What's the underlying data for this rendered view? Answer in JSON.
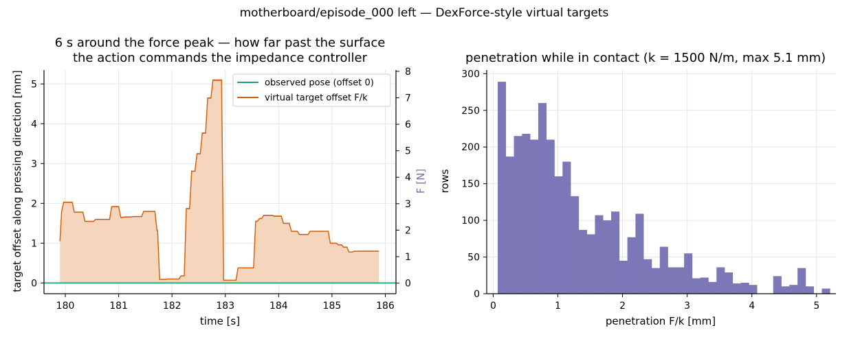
{
  "figure": {
    "suptitle": "motherboard/episode_000 left — DexForce-style virtual targets"
  },
  "colors": {
    "observed": "#1b9e77",
    "target": "#d95f02",
    "fill": "#f5d5bc",
    "force": "#7570b3",
    "grid": "#e6e6e6"
  },
  "chart_data": [
    {
      "type": "line",
      "title": "6 s around the force peak — how far past the surface\nthe action commands the impedance controller",
      "xlabel": "time [s]",
      "ylabel": "target offset along pressing direction [mm]",
      "y2label": "F [N]",
      "xlim": [
        179.6,
        186.2
      ],
      "ylim": [
        -0.27,
        5.35
      ],
      "y2lim": [
        -0.4,
        8.05
      ],
      "xticks": [
        180,
        181,
        182,
        183,
        184,
        185,
        186
      ],
      "yticks": [
        0,
        1,
        2,
        3,
        4,
        5
      ],
      "y2ticks": [
        0,
        1,
        2,
        3,
        4,
        5,
        6,
        7,
        8
      ],
      "grid": true,
      "legend_position": "top-right",
      "series": [
        {
          "name": "observed pose (offset 0)",
          "x": [
            179.6,
            186.2
          ],
          "y": [
            0,
            0
          ]
        },
        {
          "name": "virtual target offset F/k",
          "x": [
            179.9,
            179.93,
            180.03,
            180.13,
            180.33,
            180.43,
            180.53,
            180.73,
            180.83,
            181.0,
            181.07,
            181.23,
            181.43,
            181.63,
            181.68,
            181.73,
            181.88,
            182.13,
            182.23,
            182.33,
            182.43,
            182.53,
            182.63,
            182.73,
            182.83,
            182.93,
            183.2,
            183.53,
            183.6,
            183.68,
            183.88,
            184.05,
            184.2,
            184.35,
            184.55,
            184.75,
            184.93,
            185.08,
            185.18,
            185.28,
            185.38,
            185.58,
            185.88
          ],
          "y": [
            1.05,
            1.8,
            2.03,
            2.03,
            1.78,
            1.55,
            1.55,
            1.6,
            1.6,
            1.92,
            1.65,
            1.66,
            1.67,
            1.8,
            1.8,
            1.32,
            0.09,
            0.1,
            0.18,
            1.87,
            2.81,
            3.25,
            3.77,
            4.65,
            5.1,
            5.1,
            0.07,
            0.38,
            1.55,
            1.62,
            1.7,
            1.68,
            1.5,
            1.3,
            1.22,
            1.3,
            1.3,
            1.0,
            0.96,
            0.9,
            0.78,
            0.8,
            0.8
          ]
        }
      ]
    },
    {
      "type": "bar",
      "title": "penetration while in contact (k = 1500 N/m, max 5.1 mm)",
      "xlabel": "penetration F/k [mm]",
      "ylabel": "rows",
      "xlim": [
        -0.1,
        5.3
      ],
      "ylim": [
        0,
        305
      ],
      "xticks": [
        0,
        1,
        2,
        3,
        4,
        5
      ],
      "yticks": [
        0,
        50,
        100,
        150,
        200,
        250,
        300
      ],
      "grid": true,
      "bin_start": 0.07,
      "bin_width": 0.1253,
      "values": [
        289,
        187,
        215,
        218,
        210,
        260,
        210,
        160,
        180,
        133,
        87,
        81,
        107,
        100,
        112,
        45,
        77,
        109,
        47,
        35,
        64,
        36,
        36,
        55,
        21,
        22,
        16,
        36,
        29,
        14,
        15,
        12,
        0,
        0,
        24,
        10,
        12,
        35,
        10,
        0,
        7
      ]
    }
  ]
}
